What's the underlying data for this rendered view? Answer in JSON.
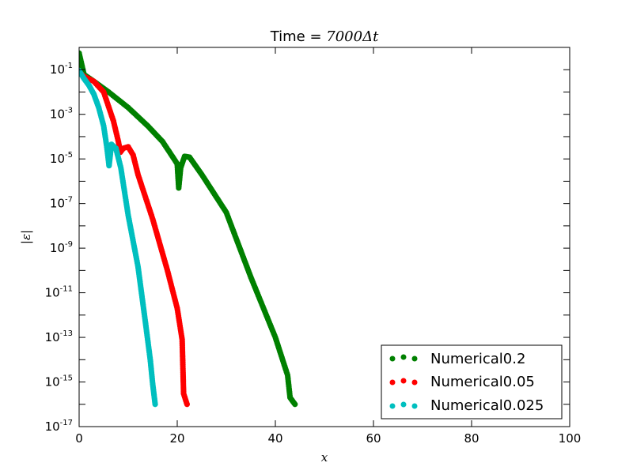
{
  "chart_data": {
    "type": "scatter",
    "title": "Time = 7000Δt",
    "title_parts": {
      "prefix": "Time = ",
      "math": "7000Δt"
    },
    "xlabel": "x",
    "ylabel": "|ε|",
    "xlim": [
      0,
      100
    ],
    "ylim": [
      1e-17,
      1
    ],
    "yscale": "log",
    "grid": false,
    "legend_position": "lower-right",
    "x_ticks": [
      "0",
      "20",
      "40",
      "60",
      "80",
      "100"
    ],
    "y_ticks": [
      {
        "base": "10",
        "exp": "-1"
      },
      {
        "base": "10",
        "exp": "-3"
      },
      {
        "base": "10",
        "exp": "-5"
      },
      {
        "base": "10",
        "exp": "-7"
      },
      {
        "base": "10",
        "exp": "-9"
      },
      {
        "base": "10",
        "exp": "-11"
      },
      {
        "base": "10",
        "exp": "-13"
      },
      {
        "base": "10",
        "exp": "-15"
      },
      {
        "base": "10",
        "exp": "-17"
      }
    ],
    "series": [
      {
        "name": "Numerical0.2",
        "color": "#008000",
        "points": [
          [
            0,
            0.55
          ],
          [
            1,
            0.06
          ],
          [
            3,
            0.03
          ],
          [
            6,
            0.01
          ],
          [
            10,
            0.002
          ],
          [
            14,
            0.0003
          ],
          [
            17,
            6e-05
          ],
          [
            19,
            1.3e-05
          ],
          [
            20,
            6e-06
          ],
          [
            20.3,
            5e-07
          ],
          [
            20.7,
            4e-06
          ],
          [
            21.5,
            1.3e-05
          ],
          [
            22.5,
            1.2e-05
          ],
          [
            25,
            2e-06
          ],
          [
            30,
            4e-08
          ],
          [
            35,
            5e-11
          ],
          [
            40,
            1e-13
          ],
          [
            42.5,
            2e-15
          ],
          [
            43,
            2e-16
          ],
          [
            44,
            1e-16
          ]
        ]
      },
      {
        "name": "Numerical0.05",
        "color": "#ff0000",
        "points": [
          [
            0,
            0.08
          ],
          [
            1,
            0.05
          ],
          [
            3,
            0.03
          ],
          [
            5,
            0.01
          ],
          [
            7,
            0.0005
          ],
          [
            8,
            6e-05
          ],
          [
            8.4,
            2e-05
          ],
          [
            9,
            3e-05
          ],
          [
            10,
            3.5e-05
          ],
          [
            11,
            1.5e-05
          ],
          [
            12,
            2e-06
          ],
          [
            15,
            2e-08
          ],
          [
            18,
            1e-10
          ],
          [
            20,
            2e-12
          ],
          [
            21,
            8e-14
          ],
          [
            21.3,
            3e-16
          ],
          [
            22,
            1e-16
          ]
        ]
      },
      {
        "name": "Numerical0.025",
        "color": "#00bfbf",
        "points": [
          [
            0,
            0.09
          ],
          [
            1,
            0.04
          ],
          [
            2,
            0.02
          ],
          [
            3,
            0.008
          ],
          [
            4,
            0.002
          ],
          [
            5,
            0.0003
          ],
          [
            5.6,
            4e-05
          ],
          [
            5.9,
            1.2e-05
          ],
          [
            6.1,
            5e-06
          ],
          [
            6.6,
            4.5e-05
          ],
          [
            7.5,
            3e-05
          ],
          [
            8.5,
            4e-06
          ],
          [
            10,
            3e-08
          ],
          [
            12,
            1.5e-10
          ],
          [
            13.5,
            5e-13
          ],
          [
            14.5,
            1e-14
          ],
          [
            15,
            8e-16
          ],
          [
            15.5,
            1e-16
          ]
        ]
      }
    ]
  }
}
